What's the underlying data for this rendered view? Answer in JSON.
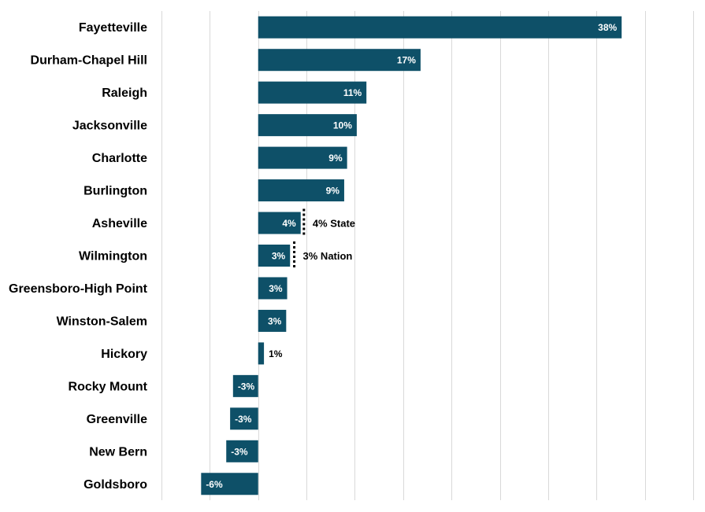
{
  "chart_data": {
    "type": "bar",
    "orientation": "horizontal",
    "categories": [
      "Fayetteville",
      "Durham-Chapel Hill",
      "Raleigh",
      "Jacksonville",
      "Charlotte",
      "Burlington",
      "Asheville",
      "Wilmington",
      "Greensboro-High Point",
      "Winston-Salem",
      "Hickory",
      "Rocky Mount",
      "Greenville",
      "New Bern",
      "Goldsboro"
    ],
    "values": [
      37.6,
      16.8,
      11.2,
      10.2,
      9.2,
      8.9,
      4.4,
      3.3,
      3.0,
      2.9,
      0.6,
      -2.6,
      -2.9,
      -3.3,
      -5.9
    ],
    "value_labels": [
      "38%",
      "17%",
      "11%",
      "10%",
      "9%",
      "9%",
      "4%",
      "3%",
      "3%",
      "3%",
      "1%",
      "-3%",
      "-3%",
      "-3%",
      "-6%"
    ],
    "bar_color": "#0e5068",
    "xlim": [
      -10,
      45
    ],
    "grid": true,
    "reference_lines": [
      {
        "value": 4,
        "label": "4% State",
        "category_index": 6
      },
      {
        "value": 3,
        "label": "3% Nation",
        "category_index": 7
      }
    ]
  }
}
